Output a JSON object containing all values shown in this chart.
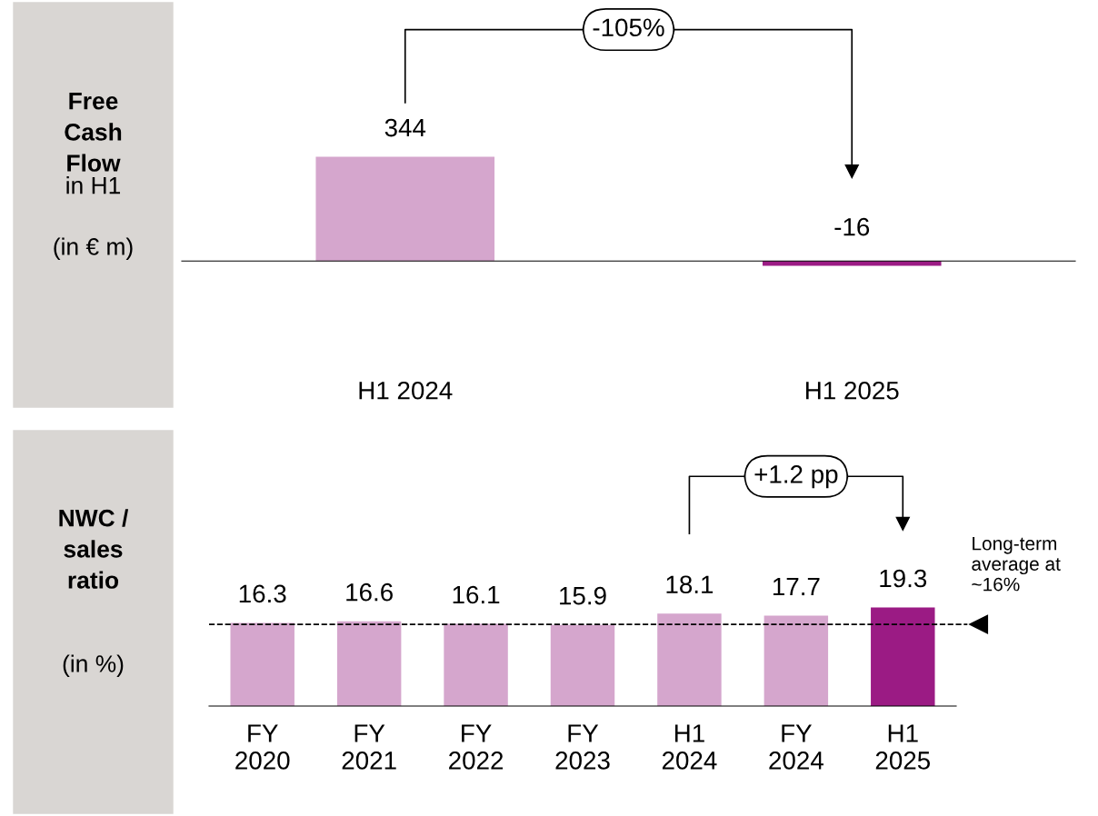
{
  "chart_data": [
    {
      "type": "bar",
      "title": "Free Cash Flow",
      "subtitle": "in H1",
      "ylabel": "(in € m)",
      "categories": [
        "H1 2024",
        "H1 2025"
      ],
      "values": [
        344,
        -16
      ],
      "colors": [
        "#d5a6cd",
        "#9b1b84"
      ],
      "data_labels": true,
      "annotations": [
        "-105%"
      ]
    },
    {
      "type": "bar",
      "title": "NWC / sales ratio",
      "ylabel": "(in %)",
      "categories": [
        "FY\n2020",
        "FY\n2021",
        "FY\n2022",
        "FY\n2023",
        "H1\n2024",
        "FY\n2024",
        "H1\n2025"
      ],
      "values": [
        16.3,
        16.6,
        16.1,
        15.9,
        18.1,
        17.7,
        19.3
      ],
      "colors": [
        "#d5a6cd",
        "#d5a6cd",
        "#d5a6cd",
        "#d5a6cd",
        "#d5a6cd",
        "#d5a6cd",
        "#9b1b84"
      ],
      "data_labels": true,
      "ref_lines": [
        {
          "axis": "y",
          "value": 16,
          "label": "Long-term\naverage at\n~16%",
          "color": "#000000",
          "line_style": "dashed"
        }
      ],
      "annotations": [
        "+1.2 pp"
      ]
    }
  ]
}
